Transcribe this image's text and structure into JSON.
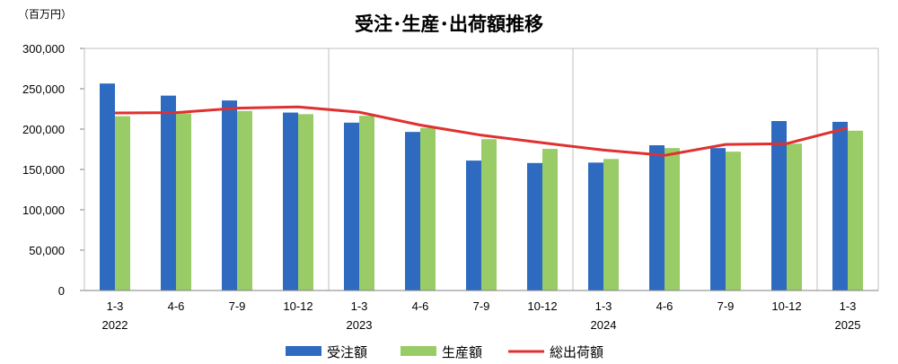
{
  "chart_data": {
    "type": "bar",
    "title": "受注･生産･出荷額推移",
    "unit_label": "（百万円）",
    "categories": [
      "1-3",
      "4-6",
      "7-9",
      "10-12",
      "1-3",
      "4-6",
      "7-9",
      "10-12",
      "1-3",
      "4-6",
      "7-9",
      "10-12",
      "1-3"
    ],
    "years": [
      {
        "label": "2022",
        "index": 0
      },
      {
        "label": "2023",
        "index": 4
      },
      {
        "label": "2024",
        "index": 8
      },
      {
        "label": "2025",
        "index": 12
      }
    ],
    "year_dividers_after_index": [
      3,
      7,
      11
    ],
    "ylim": [
      0,
      300000
    ],
    "yticks": [
      0,
      50000,
      100000,
      150000,
      200000,
      250000,
      300000
    ],
    "ytick_labels": [
      "0",
      "50,000",
      "100,000",
      "150,000",
      "200,000",
      "250,000",
      "300,000"
    ],
    "series": [
      {
        "name": "受注額",
        "type": "bar",
        "color": "#2E6BC0",
        "values": [
          256500,
          241500,
          235500,
          220500,
          208000,
          196500,
          161000,
          158000,
          158500,
          180000,
          176500,
          210000,
          209000
        ]
      },
      {
        "name": "生産額",
        "type": "bar",
        "color": "#99CC66",
        "values": [
          216000,
          219500,
          222500,
          218500,
          216500,
          201500,
          187500,
          175500,
          163000,
          176500,
          172000,
          182000,
          198000
        ]
      },
      {
        "name": "総出荷額",
        "type": "line",
        "color": "#E03030",
        "values": [
          220000,
          220500,
          226000,
          227500,
          221000,
          205000,
          192500,
          183000,
          174000,
          167500,
          181000,
          182000,
          201500
        ]
      }
    ],
    "grid": false,
    "legend_position": "bottom"
  }
}
